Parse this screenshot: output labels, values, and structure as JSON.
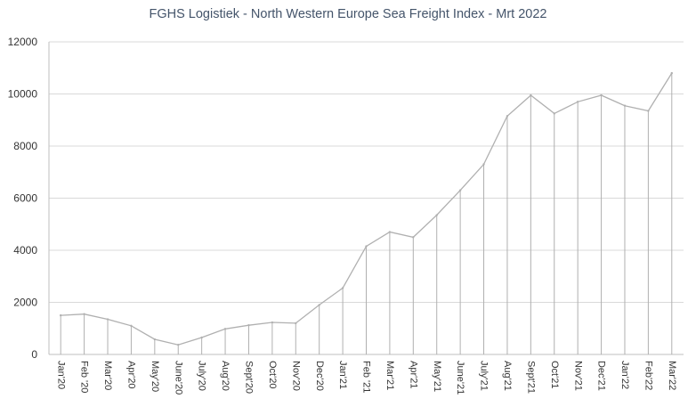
{
  "chart_data": {
    "type": "line",
    "title": "FGHS Logistiek - North Western Europe Sea Freight Index - Mrt 2022",
    "xlabel": "",
    "ylabel": "",
    "ylim": [
      0,
      12000
    ],
    "yticks": [
      0,
      2000,
      4000,
      6000,
      8000,
      10000,
      12000
    ],
    "grid": true,
    "drop_lines": true,
    "colors": {
      "line": "#b0b0b0",
      "grid": "#d9d9d9",
      "axis": "#bfbfbf"
    },
    "categories": [
      "Jan'20",
      "Feb '20",
      "Mar'20",
      "Apr'20",
      "May'20",
      "June'20",
      "July'20",
      "Aug'20",
      "Sept'20",
      "Oct'20",
      "Nov'20",
      "Dec'20",
      "Jan'21",
      "Feb '21",
      "Mar'21",
      "Apr'21",
      "May'21",
      "June'21",
      "July'21",
      "Aug'21",
      "Sept'21",
      "Oct'21",
      "Nov'21",
      "Dec'21",
      "Jan'22",
      "Feb'22",
      "Mar'22"
    ],
    "series": [
      {
        "values": [
          1500,
          1550,
          1350,
          1100,
          580,
          370,
          650,
          980,
          1120,
          1230,
          1200,
          1900,
          2550,
          4150,
          4700,
          4500,
          5350,
          6300,
          7300,
          9150,
          9950,
          9250,
          9700,
          9950,
          9550,
          9350,
          10800
        ]
      }
    ]
  }
}
